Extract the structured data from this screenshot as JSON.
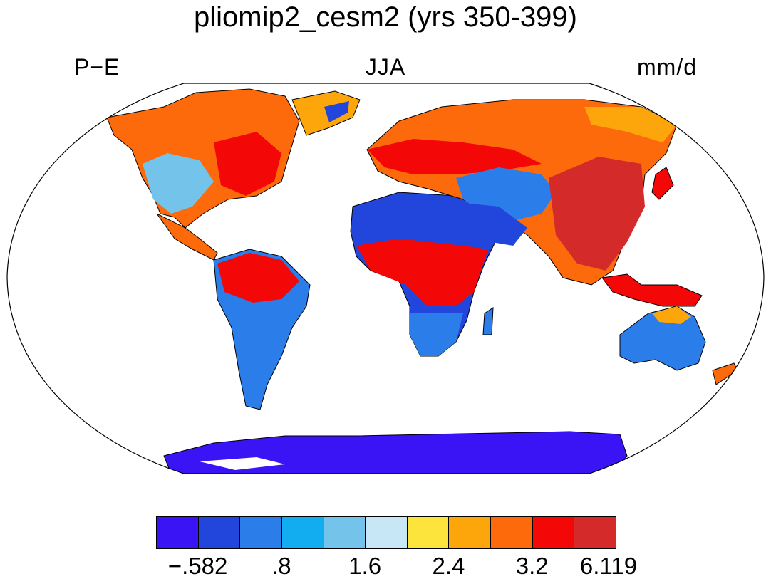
{
  "title": "pliomip2_cesm2 (yrs 350-399)",
  "subtitle_left": "P−E",
  "subtitle_center": "JJA",
  "subtitle_right": "mm/d",
  "colorbar": {
    "colors": [
      "#3a14f4",
      "#2245dc",
      "#2b7de9",
      "#12adf0",
      "#73c3ea",
      "#c7e6f6",
      "#fde43c",
      "#fca60c",
      "#fc6a0b",
      "#f40707",
      "#d52a2a"
    ],
    "tick_labels": [
      "−.582",
      ".8",
      "1.6",
      "2.4",
      "3.2",
      "6.119"
    ]
  }
}
